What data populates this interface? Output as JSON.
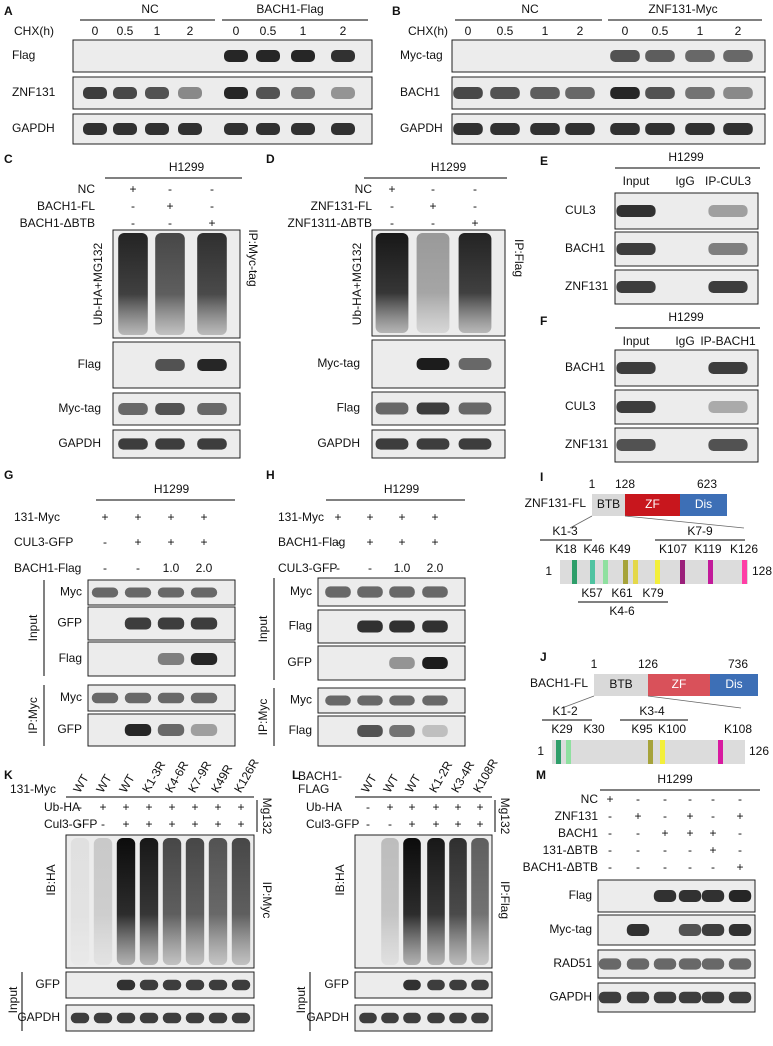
{
  "panel_a": {
    "letter": "A",
    "condition": "CHX(h)",
    "groups": [
      "NC",
      "BACH1-Flag"
    ],
    "times": [
      "0",
      "0.5",
      "1",
      "2",
      "0",
      "0.5",
      "1",
      "2"
    ],
    "rows": [
      "Flag",
      "ZNF131",
      "GAPDH"
    ]
  },
  "panel_b": {
    "letter": "B",
    "condition": "CHX(h)",
    "groups": [
      "NC",
      "ZNF131-Myc"
    ],
    "times": [
      "0",
      "0.5",
      "1",
      "2",
      "0",
      "0.5",
      "1",
      "2"
    ],
    "rows": [
      "Myc-tag",
      "BACH1",
      "GAPDH"
    ]
  },
  "panel_c": {
    "letter": "C",
    "cell": "H1299",
    "conditions": [
      {
        "label": "NC",
        "marks": [
          "+",
          "-",
          "-"
        ]
      },
      {
        "label": "BACH1-FL",
        "marks": [
          "-",
          "+",
          "-"
        ]
      },
      {
        "label": "BACH1-ΔBTB",
        "marks": [
          "-",
          "-",
          "+"
        ]
      }
    ],
    "smear_label": "Ub-HA+MG132",
    "rows": [
      "Flag",
      "Myc-tag",
      "GAPDH"
    ],
    "ip": "IP:Myc-tag"
  },
  "panel_d": {
    "letter": "D",
    "cell": "H1299",
    "conditions": [
      {
        "label": "NC",
        "marks": [
          "+",
          "-",
          "-"
        ]
      },
      {
        "label": "ZNF131-FL",
        "marks": [
          "-",
          "+",
          "-"
        ]
      },
      {
        "label": "ZNF1311-ΔBTB",
        "marks": [
          "-",
          "-",
          "+"
        ]
      }
    ],
    "smear_label": "Ub-HA+MG132",
    "rows": [
      "Myc-tag",
      "Flag",
      "GAPDH"
    ],
    "ip": "IP:Flag"
  },
  "panel_e": {
    "letter": "E",
    "cell": "H1299",
    "columns": [
      "Input",
      "IgG",
      "IP-CUL3"
    ],
    "rows": [
      "CUL3",
      "BACH1",
      "ZNF131"
    ]
  },
  "panel_f": {
    "letter": "F",
    "cell": "H1299",
    "columns": [
      "Input",
      "IgG",
      "IP-BACH1"
    ],
    "rows": [
      "BACH1",
      "CUL3",
      "ZNF131"
    ]
  },
  "panel_g": {
    "letter": "G",
    "cell": "H1299",
    "conditions": [
      {
        "label": "131-Myc",
        "marks": [
          "+",
          "+",
          "+",
          "+"
        ]
      },
      {
        "label": "CUL3-GFP",
        "marks": [
          "-",
          "+",
          "+",
          "+"
        ]
      },
      {
        "label": "BACH1-Flag",
        "marks": [
          "-",
          "-",
          "1.0",
          "2.0"
        ]
      }
    ],
    "input": {
      "label": "Input",
      "rows": [
        "Myc",
        "GFP",
        "Flag"
      ]
    },
    "ip": {
      "label": "IP:Myc",
      "rows": [
        "Myc",
        "GFP"
      ]
    }
  },
  "panel_h": {
    "letter": "H",
    "cell": "H1299",
    "conditions": [
      {
        "label": "131-Myc",
        "marks": [
          "+",
          "+",
          "+",
          "+"
        ]
      },
      {
        "label": "BACH1-Flag",
        "marks": [
          "-",
          "+",
          "+",
          "+"
        ]
      },
      {
        "label": "CUL3-GFP",
        "marks": [
          "-",
          "-",
          "1.0",
          "2.0"
        ]
      }
    ],
    "input": {
      "label": "Input",
      "rows": [
        "Myc",
        "Flag",
        "GFP"
      ]
    },
    "ip": {
      "label": "IP:Myc",
      "rows": [
        "Myc",
        "Flag"
      ]
    }
  },
  "panel_i": {
    "letter": "I",
    "name": "ZNF131-FL",
    "positions": [
      "1",
      "128",
      "623"
    ],
    "domains": [
      "BTB",
      "ZF",
      "Dis"
    ],
    "groups_above": [
      "K1-3",
      "K7-9"
    ],
    "sites_above": [
      "K18",
      "K46",
      "K49",
      "K107",
      "K119",
      "K126"
    ],
    "sites_below": [
      "K57",
      "K61",
      "K79"
    ],
    "groups_below": [
      "K4-6"
    ],
    "bar_ends": [
      "1",
      "128"
    ]
  },
  "panel_j": {
    "letter": "J",
    "name": "BACH1-FL",
    "positions": [
      "1",
      "126",
      "736"
    ],
    "domains": [
      "BTB",
      "ZF",
      "Dis"
    ],
    "groups_above": [
      "K1-2",
      "K3-4"
    ],
    "sites_above": [
      "K29",
      "K30",
      "K95",
      "K100",
      "K108"
    ],
    "bar_ends": [
      "1",
      "126"
    ]
  },
  "panel_k": {
    "letter": "K",
    "header_label": [
      "131-Myc"
    ],
    "columns": [
      "WT",
      "WT",
      "WT",
      "K1-3R",
      "K4-6R",
      "K7-9R",
      "K49R",
      "K126R"
    ],
    "conditions": [
      {
        "label": "Ub-HA",
        "marks": [
          "-",
          "+",
          "+",
          "+",
          "+",
          "+",
          "+",
          "+"
        ]
      },
      {
        "label": "Cul3-GFP",
        "marks": [
          "-",
          "-",
          "+",
          "+",
          "+",
          "+",
          "+",
          "+"
        ]
      }
    ],
    "treatment": "Mg132",
    "ib": "IB:HA",
    "ip": "IP:Myc",
    "input": {
      "label": "Input",
      "rows": [
        "GFP",
        "GAPDH"
      ]
    }
  },
  "panel_l": {
    "letter": "L",
    "header_label": [
      "BACH1-",
      "FLAG"
    ],
    "columns": [
      "WT",
      "WT",
      "WT",
      "K1-2R",
      "K3-4R",
      "K108R"
    ],
    "conditions": [
      {
        "label": "Ub-HA",
        "marks": [
          "-",
          "+",
          "+",
          "+",
          "+",
          "+"
        ]
      },
      {
        "label": "Cul3-GFP",
        "marks": [
          "-",
          "-",
          "+",
          "+",
          "+",
          "+"
        ]
      }
    ],
    "treatment": "Mg132",
    "ib": "IB:HA",
    "ip": "IP:Flag",
    "input": {
      "label": "Input",
      "rows": [
        "GFP",
        "GAPDH"
      ]
    }
  },
  "panel_m": {
    "letter": "M",
    "cell": "H1299",
    "conditions": [
      {
        "label": "NC",
        "marks": [
          "+",
          "-",
          "-",
          "-",
          "-",
          "-"
        ]
      },
      {
        "label": "ZNF131",
        "marks": [
          "-",
          "+",
          "-",
          "+",
          "-",
          "+"
        ]
      },
      {
        "label": "BACH1",
        "marks": [
          "-",
          "-",
          "+",
          "+",
          "+",
          "-"
        ]
      },
      {
        "label": "131-ΔBTB",
        "marks": [
          "-",
          "-",
          "-",
          "-",
          "+",
          "-"
        ]
      },
      {
        "label": "BACH1-ΔBTB",
        "marks": [
          "-",
          "-",
          "-",
          "-",
          "-",
          "+"
        ]
      }
    ],
    "rows": [
      "Flag",
      "Myc-tag",
      "RAD51",
      "GAPDH"
    ]
  }
}
